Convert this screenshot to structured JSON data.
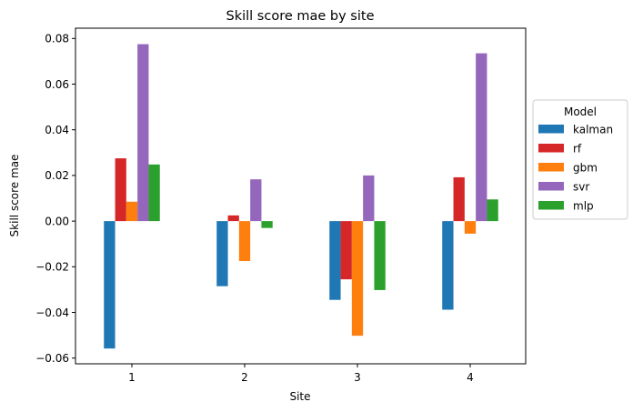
{
  "chart_data": {
    "type": "bar",
    "title": "Skill score mae by site",
    "xlabel": "Site",
    "ylabel": "Skill score mae",
    "categories": [
      "1",
      "2",
      "3",
      "4"
    ],
    "ylim": [
      -0.0625,
      0.0845
    ],
    "yticks": [
      -0.06,
      -0.04,
      -0.02,
      0.0,
      0.02,
      0.04,
      0.06,
      0.08
    ],
    "ytick_labels": [
      "−0.06",
      "−0.04",
      "−0.02",
      "0.00",
      "0.02",
      "0.04",
      "0.06",
      "0.08"
    ],
    "grid": false,
    "legend": {
      "title": "Model",
      "placement": "outside-right"
    },
    "series": [
      {
        "name": "kalman",
        "color": "#1f77b4",
        "values": [
          -0.0558,
          -0.0285,
          -0.0345,
          -0.0388
        ]
      },
      {
        "name": "rf",
        "color": "#d62728",
        "values": [
          0.0275,
          0.0025,
          -0.0255,
          0.0192
        ]
      },
      {
        "name": "gbm",
        "color": "#ff7f0e",
        "values": [
          0.0085,
          -0.0175,
          -0.0502,
          -0.0055
        ]
      },
      {
        "name": "svr",
        "color": "#9467bd",
        "values": [
          0.0775,
          0.0183,
          0.02,
          0.0735
        ]
      },
      {
        "name": "mlp",
        "color": "#2ca02c",
        "values": [
          0.0248,
          -0.003,
          -0.0302,
          0.0095
        ]
      }
    ]
  }
}
